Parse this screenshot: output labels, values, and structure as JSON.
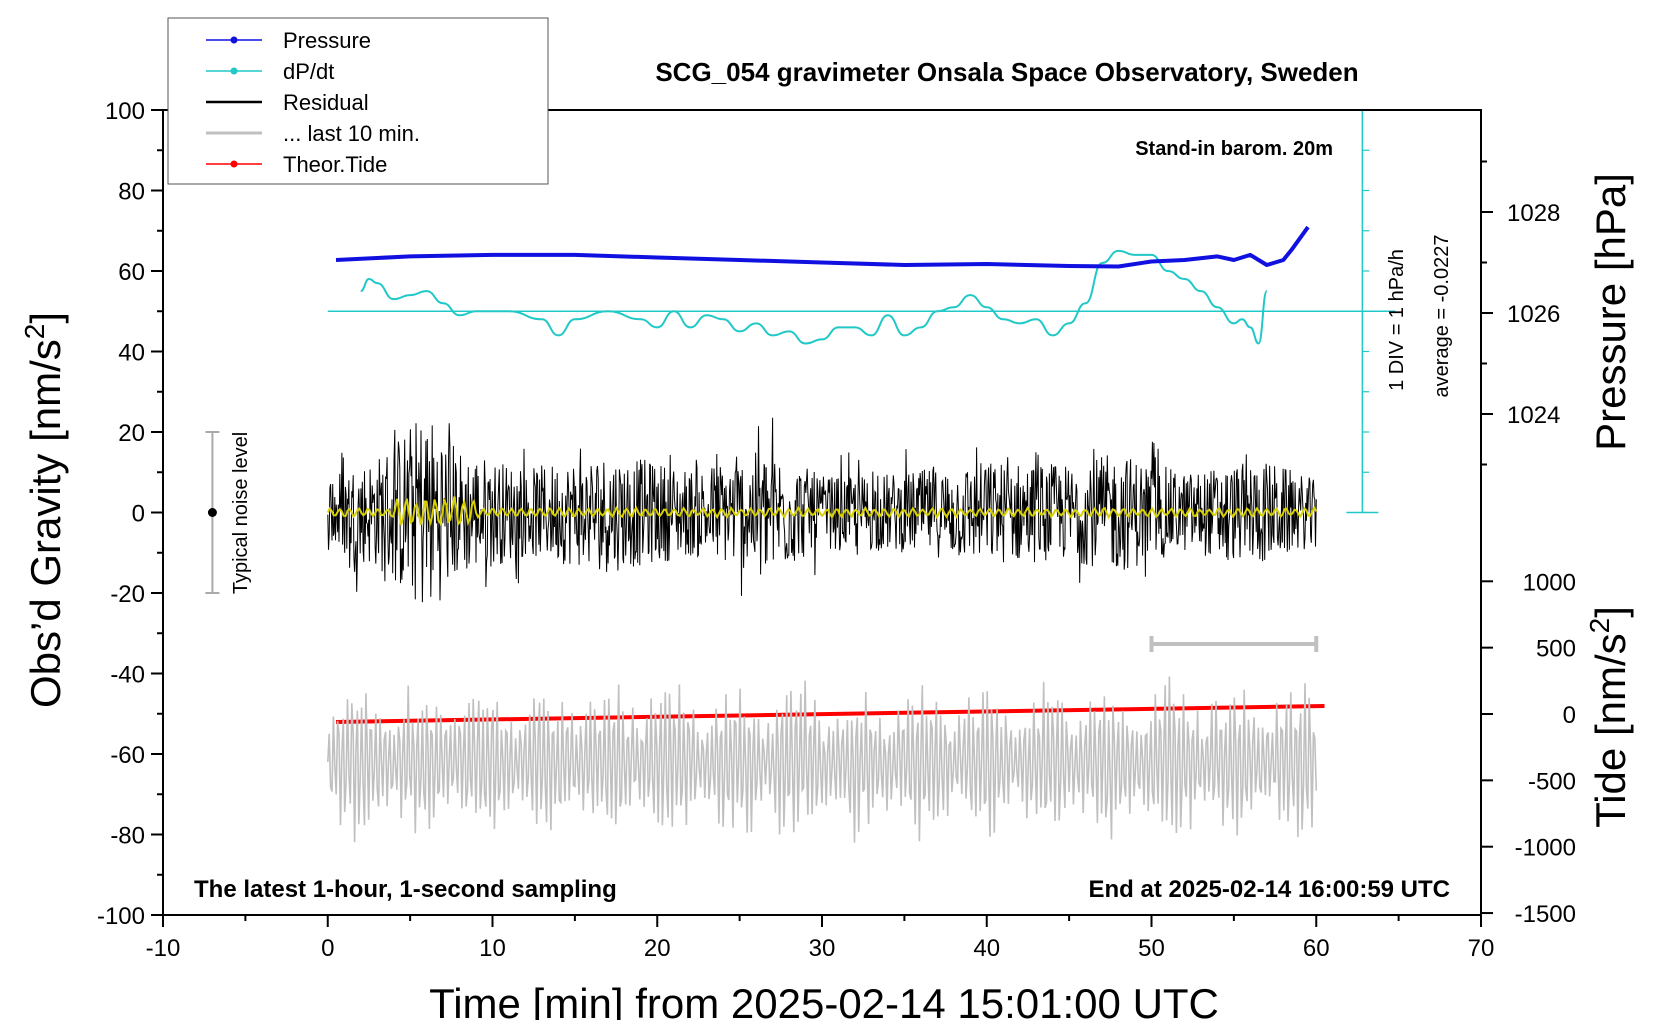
{
  "chart_data": {
    "type": "line",
    "title": "SCG_054 gravimeter Onsala Space Observatory, Sweden",
    "xlabel": "Time [min] from 2025-02-14 15:01:00 UTC",
    "ylabel_left": "Obs’d Gravity [nm/s",
    "ylabel_left_sup": "2",
    "ylabel_left_close": "]",
    "ylabel_right_top": "Pressure [hPa]",
    "ylabel_right_bottom": "Tide [nm/s",
    "ylabel_right_bottom_sup": "2",
    "ylabel_right_bottom_close": "]",
    "xlim": [
      -10,
      70
    ],
    "ylim": [
      -100,
      100
    ],
    "pressure_lim": [
      1022,
      1030
    ],
    "tide_lim": [
      -1500,
      1500
    ],
    "x_ticks": [
      "-10",
      "0",
      "10",
      "20",
      "30",
      "40",
      "50",
      "60",
      "70"
    ],
    "y_ticks": [
      "100",
      "80",
      "60",
      "40",
      "20",
      "0",
      "-20",
      "-40",
      "-60",
      "-80",
      "-100"
    ],
    "pressure_ticks": [
      "1028",
      "1026",
      "1024"
    ],
    "tide_ticks": [
      "1000",
      "500",
      "0",
      "-500",
      "-1000",
      "-1500"
    ],
    "annotations": {
      "barometer": "Stand-in barom. 20m",
      "div_scale": "1 DIV = 1 hPa/h",
      "average": "average = -0.0227",
      "noise_label": "Typical noise level",
      "footer_left": "The latest 1-hour, 1-second sampling",
      "footer_right": "End at 2025-02-14 16:00:59 UTC"
    },
    "legend": [
      {
        "name": "Pressure",
        "color": "#1010e0",
        "marker": true
      },
      {
        "name": "dP/dt",
        "color": "#20c8c8",
        "marker": true
      },
      {
        "name": "Residual",
        "color": "#000000",
        "marker": false
      },
      {
        "name": "... last 10 min.",
        "color": "#c0c0c0",
        "marker": false
      },
      {
        "name": "Theor.Tide",
        "color": "#ff0000",
        "marker": true
      }
    ],
    "series": [
      {
        "name": "Pressure",
        "color": "#1010e0",
        "axis": "pressure",
        "x": [
          0.5,
          5,
          10,
          15,
          20,
          25,
          30,
          35,
          40,
          45,
          48,
          50,
          52,
          54,
          55,
          56,
          57,
          58,
          58.5,
          59.5
        ],
        "values": [
          1027.05,
          1027.12,
          1027.15,
          1027.15,
          1027.1,
          1027.05,
          1027.0,
          1026.95,
          1026.97,
          1026.93,
          1026.92,
          1027.02,
          1027.05,
          1027.12,
          1027.05,
          1027.15,
          1026.95,
          1027.05,
          1027.25,
          1027.7
        ]
      },
      {
        "name": "dP/dt",
        "color": "#20c8c8",
        "axis": "left",
        "x": [
          2,
          2.5,
          3,
          4,
          5,
          6,
          7,
          8,
          9,
          11,
          13,
          14,
          15,
          17,
          19,
          20,
          21,
          22,
          23,
          24,
          25,
          26,
          27,
          28,
          29,
          30,
          31,
          32,
          33,
          34,
          35,
          36,
          37,
          38,
          39,
          40,
          41,
          42,
          43,
          44,
          45,
          46,
          47,
          48,
          49,
          50,
          51,
          52,
          53,
          54,
          55,
          55.5,
          56,
          56.5,
          57
        ],
        "values": [
          55,
          58,
          57,
          53,
          54,
          55,
          52,
          49,
          50,
          50,
          48,
          44,
          48,
          50,
          48,
          46,
          50,
          46,
          49,
          48,
          45,
          47,
          44,
          45,
          42,
          43,
          46,
          46,
          44,
          49,
          44,
          46,
          50,
          51,
          54,
          51,
          48,
          47,
          48,
          44,
          47,
          52,
          62,
          65,
          64,
          64,
          60,
          58,
          55,
          51,
          47,
          48,
          46,
          42,
          55
        ]
      },
      {
        "name": "Residual",
        "color": "#000000",
        "axis": "left",
        "x_range": [
          0,
          60
        ],
        "values_envelope": [
          [
            0,
            10
          ],
          [
            3,
            14
          ],
          [
            6,
            26
          ],
          [
            8,
            16
          ],
          [
            12,
            11
          ],
          [
            17,
            15
          ],
          [
            22,
            11
          ],
          [
            27,
            16
          ],
          [
            30,
            9
          ],
          [
            35,
            10
          ],
          [
            40,
            13
          ],
          [
            45,
            12
          ],
          [
            48,
            15
          ],
          [
            52,
            10
          ],
          [
            55,
            12
          ],
          [
            57,
            13
          ],
          [
            60,
            8
          ]
        ]
      },
      {
        "name": "Smoothed",
        "color": "#d8d000",
        "axis": "left",
        "x_range": [
          0,
          60
        ],
        "values": [
          0,
          0
        ]
      },
      {
        "name": "... last 10 min.",
        "color": "#c0c0c0",
        "axis": "left",
        "x_range": [
          0,
          60
        ],
        "center": -62,
        "amplitude_range": [
          4,
          22
        ]
      },
      {
        "name": "Theor.Tide",
        "color": "#ff0000",
        "axis": "tide",
        "x": [
          0.5,
          60.5
        ],
        "values": [
          -60,
          60
        ]
      }
    ],
    "scale_bar_x": [
      50,
      60
    ],
    "noise_bar": {
      "x": -7,
      "y_range": [
        -20,
        20
      ]
    }
  }
}
